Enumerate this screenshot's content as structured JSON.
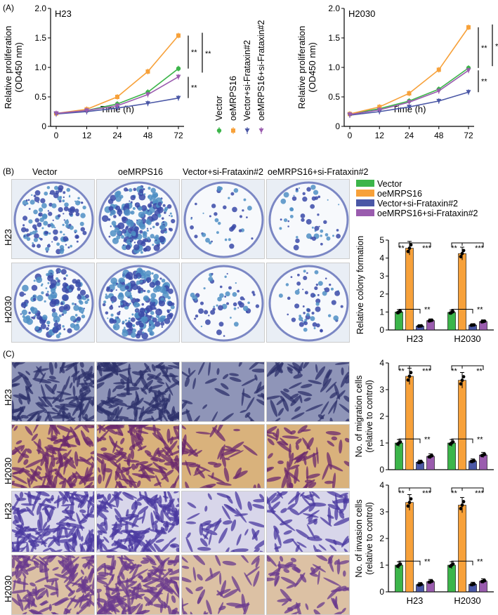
{
  "panel_labels": {
    "a": "(A)",
    "b": "(B)",
    "c": "(C)"
  },
  "colors": {
    "vector": "#3cb54a",
    "oe": "#f7a13a",
    "vec_si": "#4a57a6",
    "oe_si": "#9a5cae"
  },
  "legend_a": [
    "Vector",
    "oeMRPS16",
    "Vector+si-Frataxin#2",
    "oeMRPS16+si-Frataxin#2"
  ],
  "legend_b": [
    "Vector",
    "oeMRPS16",
    "Vector+si-Frataxin#2",
    "oeMRPS16+si-Frataxin#2"
  ],
  "column_titles": [
    "Vector",
    "oeMRPS16",
    "Vector+si-Frataxin#2",
    "oeMRPS16+si-Frataxin#2"
  ],
  "row_labels_b": [
    "H23",
    "H2030"
  ],
  "row_labels_c": [
    "H23",
    "H2030",
    "H23",
    "H2030"
  ],
  "chart_data": [
    {
      "type": "line",
      "title": "H23",
      "xlabel": "Time (h)",
      "ylabel": "Relative proliferation\n(OD450 nm)",
      "x": [
        0,
        12,
        24,
        48,
        72
      ],
      "ylim": [
        0,
        2.0
      ],
      "yticks": [
        "0",
        "0.5",
        "1.0",
        "1.5",
        "2.0"
      ],
      "series": [
        {
          "name": "Vector",
          "values": [
            0.22,
            0.27,
            0.38,
            0.58,
            0.98
          ]
        },
        {
          "name": "oeMRPS16",
          "values": [
            0.22,
            0.29,
            0.5,
            0.93,
            1.54
          ]
        },
        {
          "name": "Vector+si-Frataxin#2",
          "values": [
            0.21,
            0.25,
            0.31,
            0.39,
            0.48
          ]
        },
        {
          "name": "oeMRPS16+si-Frataxin#2",
          "values": [
            0.22,
            0.27,
            0.35,
            0.54,
            0.84
          ]
        }
      ],
      "significance": [
        "**",
        "**",
        "**"
      ]
    },
    {
      "type": "line",
      "title": "H2030",
      "xlabel": "Time (h)",
      "ylabel": "Relative proliferation\n(OD450 nm)",
      "x": [
        0,
        12,
        24,
        48,
        72
      ],
      "ylim": [
        0,
        2.0
      ],
      "yticks": [
        "0",
        "0.5",
        "1.0",
        "1.5",
        "2.0"
      ],
      "series": [
        {
          "name": "Vector",
          "values": [
            0.21,
            0.3,
            0.43,
            0.63,
            0.99
          ]
        },
        {
          "name": "oeMRPS16",
          "values": [
            0.21,
            0.33,
            0.56,
            0.96,
            1.68
          ]
        },
        {
          "name": "Vector+si-Frataxin#2",
          "values": [
            0.19,
            0.25,
            0.33,
            0.43,
            0.58
          ]
        },
        {
          "name": "oeMRPS16+si-Frataxin#2",
          "values": [
            0.2,
            0.28,
            0.41,
            0.6,
            0.95
          ]
        }
      ],
      "significance": [
        "**",
        "**",
        "**"
      ]
    },
    {
      "type": "bar",
      "ylabel": "Relative colony formation",
      "categories": [
        "H23",
        "H2030"
      ],
      "ylim": [
        0,
        5
      ],
      "yticks": [
        "0",
        "1",
        "2",
        "3",
        "4",
        "5"
      ],
      "series": [
        {
          "name": "Vector",
          "values": [
            1.0,
            0.98
          ]
        },
        {
          "name": "oeMRPS16",
          "values": [
            4.55,
            4.25
          ]
        },
        {
          "name": "Vector+si-Frataxin#2",
          "values": [
            0.22,
            0.27
          ]
        },
        {
          "name": "oeMRPS16+si-Frataxin#2",
          "values": [
            0.52,
            0.47
          ]
        }
      ],
      "significance": {
        "H23": [
          "**",
          "***",
          "**"
        ],
        "H2030": [
          "**",
          "***",
          "**"
        ]
      }
    },
    {
      "type": "bar",
      "ylabel": "No. of migration cells\n(relative to control)",
      "categories": [
        "H23",
        "H2030"
      ],
      "ylim": [
        0,
        4
      ],
      "yticks": [
        "0",
        "1",
        "2",
        "3",
        "4"
      ],
      "series": [
        {
          "name": "Vector",
          "values": [
            1.0,
            1.0
          ]
        },
        {
          "name": "oeMRPS16",
          "values": [
            3.5,
            3.35
          ]
        },
        {
          "name": "Vector+si-Frataxin#2",
          "values": [
            0.28,
            0.32
          ]
        },
        {
          "name": "oeMRPS16+si-Frataxin#2",
          "values": [
            0.5,
            0.55
          ]
        }
      ],
      "significance": {
        "H23": [
          "**",
          "***",
          "**"
        ],
        "H2030": [
          "**",
          "**",
          "**"
        ]
      }
    },
    {
      "type": "bar",
      "ylabel": "No. of invasion cells\n(relative to control)",
      "categories": [
        "H23",
        "H2030"
      ],
      "ylim": [
        0,
        4
      ],
      "yticks": [
        "0",
        "1",
        "2",
        "3",
        "4"
      ],
      "series": [
        {
          "name": "Vector",
          "values": [
            1.0,
            1.0
          ]
        },
        {
          "name": "oeMRPS16",
          "values": [
            3.35,
            3.25
          ]
        },
        {
          "name": "Vector+si-Frataxin#2",
          "values": [
            0.27,
            0.28
          ]
        },
        {
          "name": "oeMRPS16+si-Frataxin#2",
          "values": [
            0.38,
            0.4
          ]
        }
      ],
      "significance": {
        "H23": [
          "**",
          "***",
          "**"
        ],
        "H2030": [
          "**",
          "***",
          "**"
        ]
      }
    }
  ]
}
